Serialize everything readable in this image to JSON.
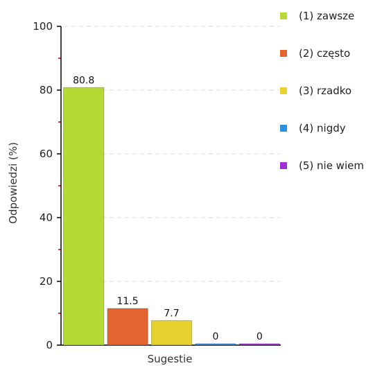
{
  "chart_data": {
    "type": "bar",
    "title": "",
    "xlabel": "Sugestie",
    "ylabel": "Odpowiedzi (%)",
    "ylim": [
      0,
      100
    ],
    "yticks": [
      0,
      20,
      40,
      60,
      80,
      100
    ],
    "grid": true,
    "legend_position": "right",
    "series": [
      {
        "name": "(1) zawsze",
        "value": 80.8,
        "label": "80.8",
        "color": "#b5d935"
      },
      {
        "name": "(2) często",
        "value": 11.5,
        "label": "11.5",
        "color": "#e4642f"
      },
      {
        "name": "(3) rzadko",
        "value": 7.7,
        "label": "7.7",
        "color": "#e6d12f"
      },
      {
        "name": "(4) nigdy",
        "value": 0,
        "label": "0",
        "color": "#2f8fe0"
      },
      {
        "name": "(5) nie wiem",
        "value": 0,
        "label": "0",
        "color": "#a12fd6"
      }
    ]
  }
}
